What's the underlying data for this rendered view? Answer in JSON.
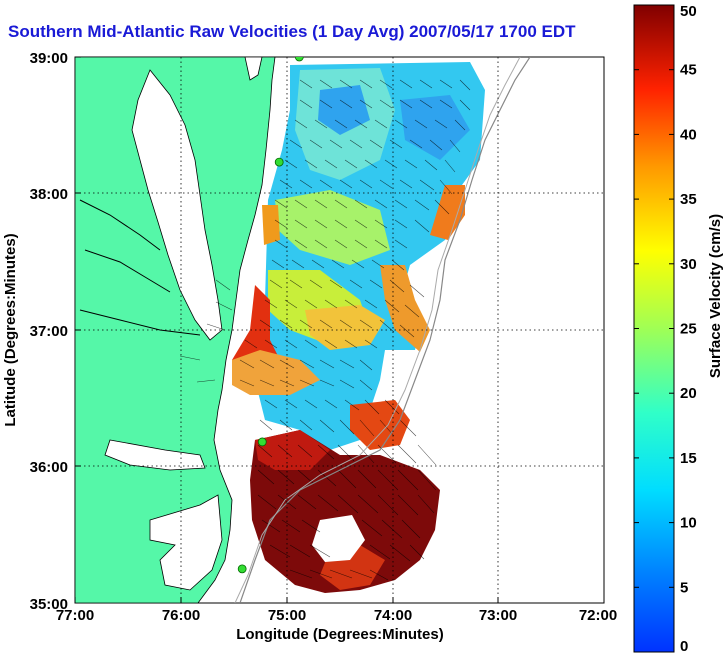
{
  "title": "Southern Mid-Atlantic Raw Velocities (1 Day Avg) 2007/05/17 1700 EDT",
  "axes": {
    "xlabel": "Longitude (Degrees:Minutes)",
    "ylabel": "Latitude (Degrees:Minutes)",
    "x_ticks": [
      "77:00",
      "76:00",
      "75:00",
      "74:00",
      "73:00",
      "72:00"
    ],
    "y_ticks": [
      "39:00",
      "38:00",
      "37:00",
      "36:00",
      "35:00"
    ]
  },
  "colorbar": {
    "label": "Surface Velocity (cm/s)",
    "ticks": [
      "0",
      "5",
      "10",
      "15",
      "20",
      "25",
      "30",
      "35",
      "40",
      "45",
      "50"
    ],
    "range": [
      0,
      50
    ]
  },
  "colors": {
    "land": "#55f7a8",
    "title": "#1a1ad6",
    "station": "#33dd33"
  },
  "map_data": {
    "lon_range": [
      -77,
      -72
    ],
    "lat_range": [
      35,
      39
    ],
    "stations": [
      {
        "lon": -74.88,
        "lat": 39.0
      },
      {
        "lon": -75.07,
        "lat": 38.23
      },
      {
        "lon": -75.23,
        "lat": 36.18
      },
      {
        "lon": -75.42,
        "lat": 35.25
      }
    ]
  }
}
